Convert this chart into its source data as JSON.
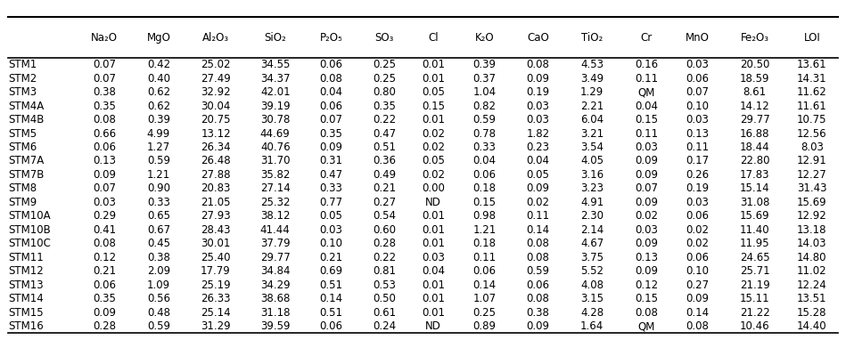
{
  "headers": [
    "",
    "Na₂O",
    "MgO",
    "Al₂O₃",
    "SiO₂",
    "P₂O₅",
    "SO₃",
    "Cl",
    "K₂O",
    "CaO",
    "TiO₂",
    "Cr",
    "MnO",
    "Fe₂O₃",
    "LOI"
  ],
  "rows": [
    [
      "STM1",
      "0.07",
      "0.42",
      "25.02",
      "34.55",
      "0.06",
      "0.25",
      "0.01",
      "0.39",
      "0.08",
      "4.53",
      "0.16",
      "0.03",
      "20.50",
      "13.61"
    ],
    [
      "STM2",
      "0.07",
      "0.40",
      "27.49",
      "34.37",
      "0.08",
      "0.25",
      "0.01",
      "0.37",
      "0.09",
      "3.49",
      "0.11",
      "0.06",
      "18.59",
      "14.31"
    ],
    [
      "STM3",
      "0.38",
      "0.62",
      "32.92",
      "42.01",
      "0.04",
      "0.80",
      "0.05",
      "1.04",
      "0.19",
      "1.29",
      "QM",
      "0.07",
      "8.61",
      "11.62"
    ],
    [
      "STM4A",
      "0.35",
      "0.62",
      "30.04",
      "39.19",
      "0.06",
      "0.35",
      "0.15",
      "0.82",
      "0.03",
      "2.21",
      "0.04",
      "0.10",
      "14.12",
      "11.61"
    ],
    [
      "STM4B",
      "0.08",
      "0.39",
      "20.75",
      "30.78",
      "0.07",
      "0.22",
      "0.01",
      "0.59",
      "0.03",
      "6.04",
      "0.15",
      "0.03",
      "29.77",
      "10.75"
    ],
    [
      "STM5",
      "0.66",
      "4.99",
      "13.12",
      "44.69",
      "0.35",
      "0.47",
      "0.02",
      "0.78",
      "1.82",
      "3.21",
      "0.11",
      "0.13",
      "16.88",
      "12.56"
    ],
    [
      "STM6",
      "0.06",
      "1.27",
      "26.34",
      "40.76",
      "0.09",
      "0.51",
      "0.02",
      "0.33",
      "0.23",
      "3.54",
      "0.03",
      "0.11",
      "18.44",
      "8.03"
    ],
    [
      "STM7A",
      "0.13",
      "0.59",
      "26.48",
      "31.70",
      "0.31",
      "0.36",
      "0.05",
      "0.04",
      "0.04",
      "4.05",
      "0.09",
      "0.17",
      "22.80",
      "12.91"
    ],
    [
      "STM7B",
      "0.09",
      "1.21",
      "27.88",
      "35.82",
      "0.47",
      "0.49",
      "0.02",
      "0.06",
      "0.05",
      "3.16",
      "0.09",
      "0.26",
      "17.83",
      "12.27"
    ],
    [
      "STM8",
      "0.07",
      "0.90",
      "20.83",
      "27.14",
      "0.33",
      "0.21",
      "0.00",
      "0.18",
      "0.09",
      "3.23",
      "0.07",
      "0.19",
      "15.14",
      "31.43"
    ],
    [
      "STM9",
      "0.03",
      "0.33",
      "21.05",
      "25.32",
      "0.77",
      "0.27",
      "ND",
      "0.15",
      "0.02",
      "4.91",
      "0.09",
      "0.03",
      "31.08",
      "15.69"
    ],
    [
      "STM10A",
      "0.29",
      "0.65",
      "27.93",
      "38.12",
      "0.05",
      "0.54",
      "0.01",
      "0.98",
      "0.11",
      "2.30",
      "0.02",
      "0.06",
      "15.69",
      "12.92"
    ],
    [
      "STM10B",
      "0.41",
      "0.67",
      "28.43",
      "41.44",
      "0.03",
      "0.60",
      "0.01",
      "1.21",
      "0.14",
      "2.14",
      "0.03",
      "0.02",
      "11.40",
      "13.18"
    ],
    [
      "STM10C",
      "0.08",
      "0.45",
      "30.01",
      "37.79",
      "0.10",
      "0.28",
      "0.01",
      "0.18",
      "0.08",
      "4.67",
      "0.09",
      "0.02",
      "11.95",
      "14.03"
    ],
    [
      "STM11",
      "0.12",
      "0.38",
      "25.40",
      "29.77",
      "0.21",
      "0.22",
      "0.03",
      "0.11",
      "0.08",
      "3.75",
      "0.13",
      "0.06",
      "24.65",
      "14.80"
    ],
    [
      "STM12",
      "0.21",
      "2.09",
      "17.79",
      "34.84",
      "0.69",
      "0.81",
      "0.04",
      "0.06",
      "0.59",
      "5.52",
      "0.09",
      "0.10",
      "25.71",
      "11.02"
    ],
    [
      "STM13",
      "0.06",
      "1.09",
      "25.19",
      "34.29",
      "0.51",
      "0.53",
      "0.01",
      "0.14",
      "0.06",
      "4.08",
      "0.12",
      "0.27",
      "21.19",
      "12.24"
    ],
    [
      "STM14",
      "0.35",
      "0.56",
      "26.33",
      "38.68",
      "0.14",
      "0.50",
      "0.01",
      "1.07",
      "0.08",
      "3.15",
      "0.15",
      "0.09",
      "15.11",
      "13.51"
    ],
    [
      "STM15",
      "0.09",
      "0.48",
      "25.14",
      "31.18",
      "0.51",
      "0.61",
      "0.01",
      "0.25",
      "0.38",
      "4.28",
      "0.08",
      "0.14",
      "21.22",
      "15.28"
    ],
    [
      "STM16",
      "0.28",
      "0.59",
      "31.29",
      "39.59",
      "0.06",
      "0.24",
      "ND",
      "0.89",
      "0.09",
      "1.64",
      "QM",
      "0.08",
      "10.46",
      "14.40"
    ]
  ],
  "background_color": "#ffffff",
  "header_line_color": "#000000",
  "text_color": "#000000",
  "font_size": 8.5,
  "header_font_size": 8.5
}
